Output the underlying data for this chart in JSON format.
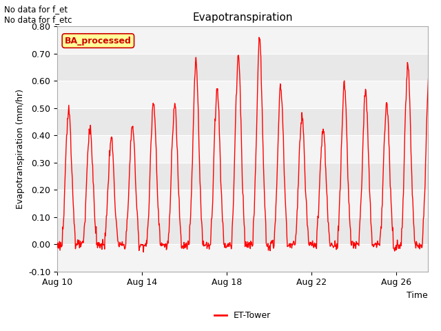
{
  "title": "Evapotranspiration",
  "ylabel": "Evapotranspiration (mm/hr)",
  "xlabel": "Time",
  "ylim": [
    -0.1,
    0.8
  ],
  "yticks": [
    -0.1,
    0.0,
    0.1,
    0.2,
    0.3,
    0.4,
    0.5,
    0.6,
    0.7,
    0.8
  ],
  "line_color": "#ff0000",
  "line_width": 1.0,
  "bg_color": "#ffffff",
  "plot_bg_color": "#e8e8e8",
  "no_data_text1": "No data for f_et",
  "no_data_text2": "No data for f_etc",
  "box_label": "BA_processed",
  "box_text_color": "#cc0000",
  "box_face_color": "#ffff99",
  "box_edge_color": "#cc0000",
  "legend_label": "ET-Tower",
  "xtick_labels": [
    "Aug 10",
    "Aug 14",
    "Aug 18",
    "Aug 22",
    "Aug 26"
  ],
  "xtick_positions": [
    0,
    4,
    8,
    12,
    16
  ],
  "xlim": [
    0,
    17.5
  ],
  "n_days": 18,
  "points_per_day": 48,
  "band_ranges": [
    [
      -0.1,
      0.0
    ],
    [
      0.1,
      0.2
    ],
    [
      0.3,
      0.4
    ],
    [
      0.5,
      0.6
    ],
    [
      0.7,
      0.8
    ]
  ]
}
